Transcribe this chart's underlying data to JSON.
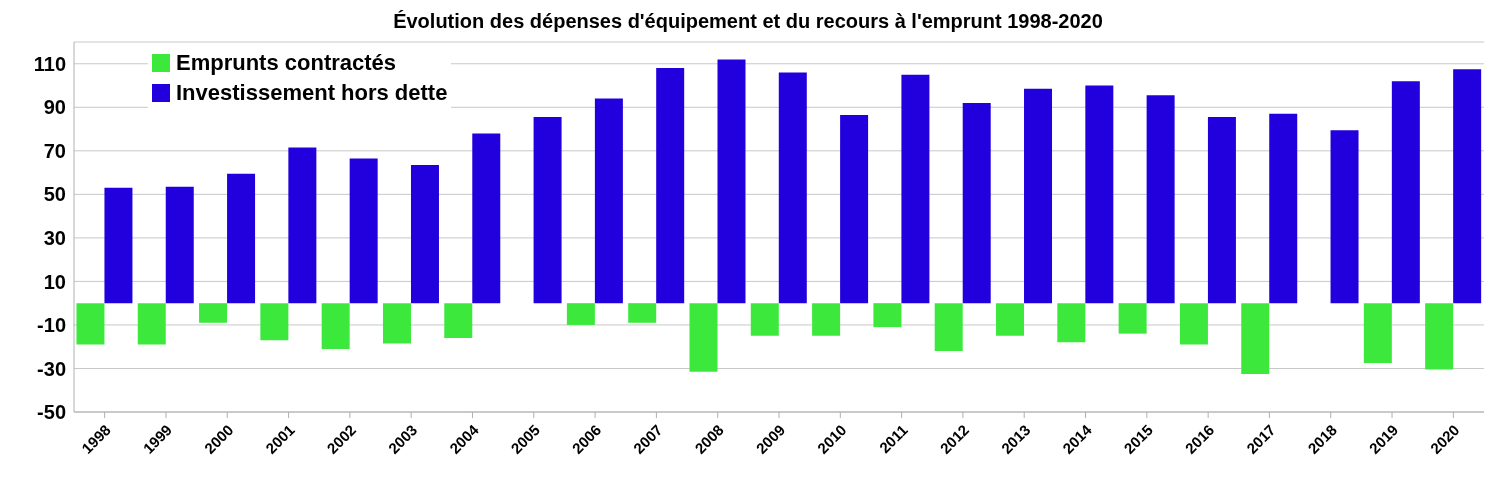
{
  "chart_data": {
    "type": "bar",
    "title": "Évolution des dépenses d'équipement et du recours à l'emprunt 1998-2020",
    "categories": [
      "1998",
      "1999",
      "2000",
      "2001",
      "2002",
      "2003",
      "2004",
      "2005",
      "2006",
      "2007",
      "2008",
      "2009",
      "2010",
      "2011",
      "2012",
      "2013",
      "2014",
      "2015",
      "2016",
      "2017",
      "2018",
      "2019",
      "2020"
    ],
    "series": [
      {
        "name": "Emprunts contractés",
        "color": "#3de83d",
        "values": [
          -19,
          -19,
          -9,
          -17,
          -21,
          -18.5,
          -16,
          0,
          -10,
          -9,
          -31.5,
          -15,
          -15,
          -11,
          -22,
          -15,
          -18,
          -14,
          -19,
          -32.5,
          0,
          -27.5,
          -30.5
        ]
      },
      {
        "name": "Investissement hors dette",
        "color": "#2200dd",
        "values": [
          53,
          53.5,
          59.5,
          71.5,
          66.5,
          63.5,
          78,
          85.5,
          94,
          108,
          112,
          106,
          86.5,
          105,
          92,
          98.5,
          100,
          95.5,
          85.5,
          87,
          79.5,
          102,
          107.5
        ]
      }
    ],
    "ylim": [
      -50,
      120
    ],
    "yticks": [
      -50,
      -30,
      -10,
      10,
      30,
      50,
      70,
      90,
      110
    ],
    "grid": "y",
    "legend": "top left"
  }
}
